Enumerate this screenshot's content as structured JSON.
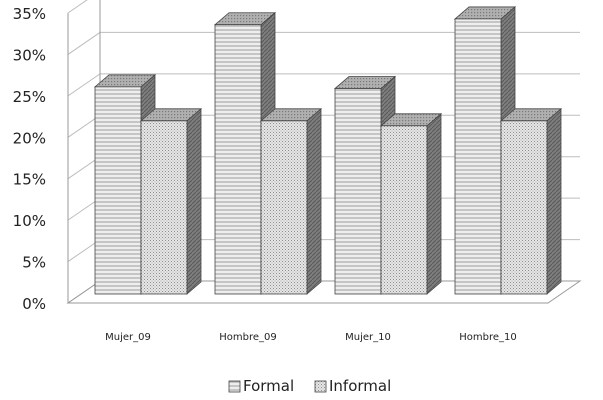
{
  "chart_data": {
    "type": "bar",
    "categories": [
      "Mujer_09",
      "Hombre_09",
      "Mujer_10",
      "Hombre_10"
    ],
    "series": [
      {
        "name": "Formal",
        "values": [
          25,
          32.5,
          24.8,
          33.2
        ]
      },
      {
        "name": "Informal",
        "values": [
          20.9,
          20.9,
          20.3,
          20.9
        ]
      }
    ],
    "ylim": [
      0,
      35
    ],
    "yticks": [
      "0%",
      "5%",
      "10%",
      "15%",
      "20%",
      "25%",
      "30%",
      "35%"
    ],
    "ytick_values": [
      0,
      5,
      10,
      15,
      20,
      25,
      30,
      35
    ],
    "grid": true,
    "legend_position": "bottom",
    "style": "3d-clustered-column",
    "colors": {
      "front": "#e6e6e6",
      "side": "#8a8a8a",
      "top": "#b5b5b5",
      "informal_front": "#d4d4d4"
    }
  }
}
